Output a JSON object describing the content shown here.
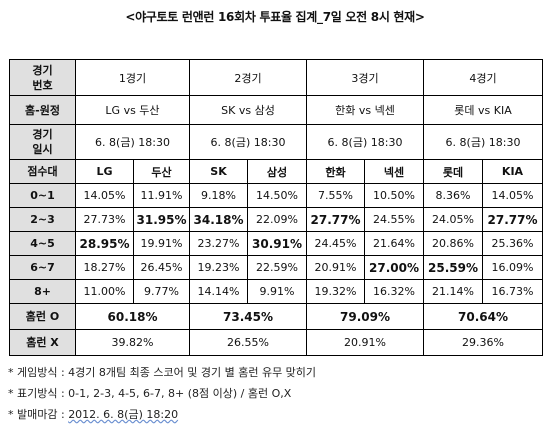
{
  "title": "<야구토토 런앤런 16회차 투표율 집계_7일 오전 8시 현재>",
  "header": {
    "game_no_label": "경기\n번호",
    "matchup_label": "홈-원정",
    "date_label": "경기\n일시",
    "score_band_label": "점수대",
    "homerun_o_label": "홈런 O",
    "homerun_x_label": "홈런 X"
  },
  "games": [
    {
      "number": "1경기",
      "matchup": "LG vs 두산",
      "datetime": "6. 8(금) 18:30",
      "home": "LG",
      "away": "두산",
      "homerun_o": "60.18%",
      "homerun_x": "39.82%"
    },
    {
      "number": "2경기",
      "matchup": "SK vs 삼성",
      "datetime": "6. 8(금) 18:30",
      "home": "SK",
      "away": "삼성",
      "homerun_o": "73.45%",
      "homerun_x": "26.55%"
    },
    {
      "number": "3경기",
      "matchup": "한화 vs 넥센",
      "datetime": "6. 8(금) 18:30",
      "home": "한화",
      "away": "넥센",
      "homerun_o": "79.09%",
      "homerun_x": "20.91%"
    },
    {
      "number": "4경기",
      "matchup": "롯데 vs KIA",
      "datetime": "6. 8(금) 18:30",
      "home": "롯데",
      "away": "KIA",
      "homerun_o": "70.64%",
      "homerun_x": "29.36%"
    }
  ],
  "score_rows": [
    {
      "band": "0~1",
      "values": [
        "14.05%",
        "11.91%",
        "9.18%",
        "14.50%",
        "7.55%",
        "10.50%",
        "8.36%",
        "14.05%"
      ],
      "bold": [
        false,
        false,
        false,
        false,
        false,
        false,
        false,
        false
      ]
    },
    {
      "band": "2~3",
      "values": [
        "27.73%",
        "31.95%",
        "34.18%",
        "22.09%",
        "27.77%",
        "24.55%",
        "24.05%",
        "27.77%"
      ],
      "bold": [
        false,
        true,
        true,
        false,
        true,
        false,
        false,
        true
      ]
    },
    {
      "band": "4~5",
      "values": [
        "28.95%",
        "19.91%",
        "23.27%",
        "30.91%",
        "24.45%",
        "21.64%",
        "20.86%",
        "25.36%"
      ],
      "bold": [
        true,
        false,
        false,
        true,
        false,
        false,
        false,
        false
      ]
    },
    {
      "band": "6~7",
      "values": [
        "18.27%",
        "26.45%",
        "19.23%",
        "22.59%",
        "20.91%",
        "27.00%",
        "25.59%",
        "16.09%"
      ],
      "bold": [
        false,
        false,
        false,
        false,
        false,
        true,
        true,
        false
      ]
    },
    {
      "band": "8+",
      "values": [
        "11.00%",
        "9.77%",
        "14.14%",
        "9.91%",
        "19.32%",
        "16.32%",
        "21.14%",
        "16.73%"
      ],
      "bold": [
        false,
        false,
        false,
        false,
        false,
        false,
        false,
        false
      ]
    }
  ],
  "notes": {
    "method": "* 게임방식 : 4경기 8개팀 최종 스코어 및 경기 별 홈런 유무 맞히기",
    "format": "* 표기방식 : 0-1, 2-3, 4-5, 6-7, 8+ (8점 이상) / 홈런 O,X",
    "deadline_label": "* 발매마감 : ",
    "deadline_value": "2012. 6. 8(금) 18:20"
  }
}
